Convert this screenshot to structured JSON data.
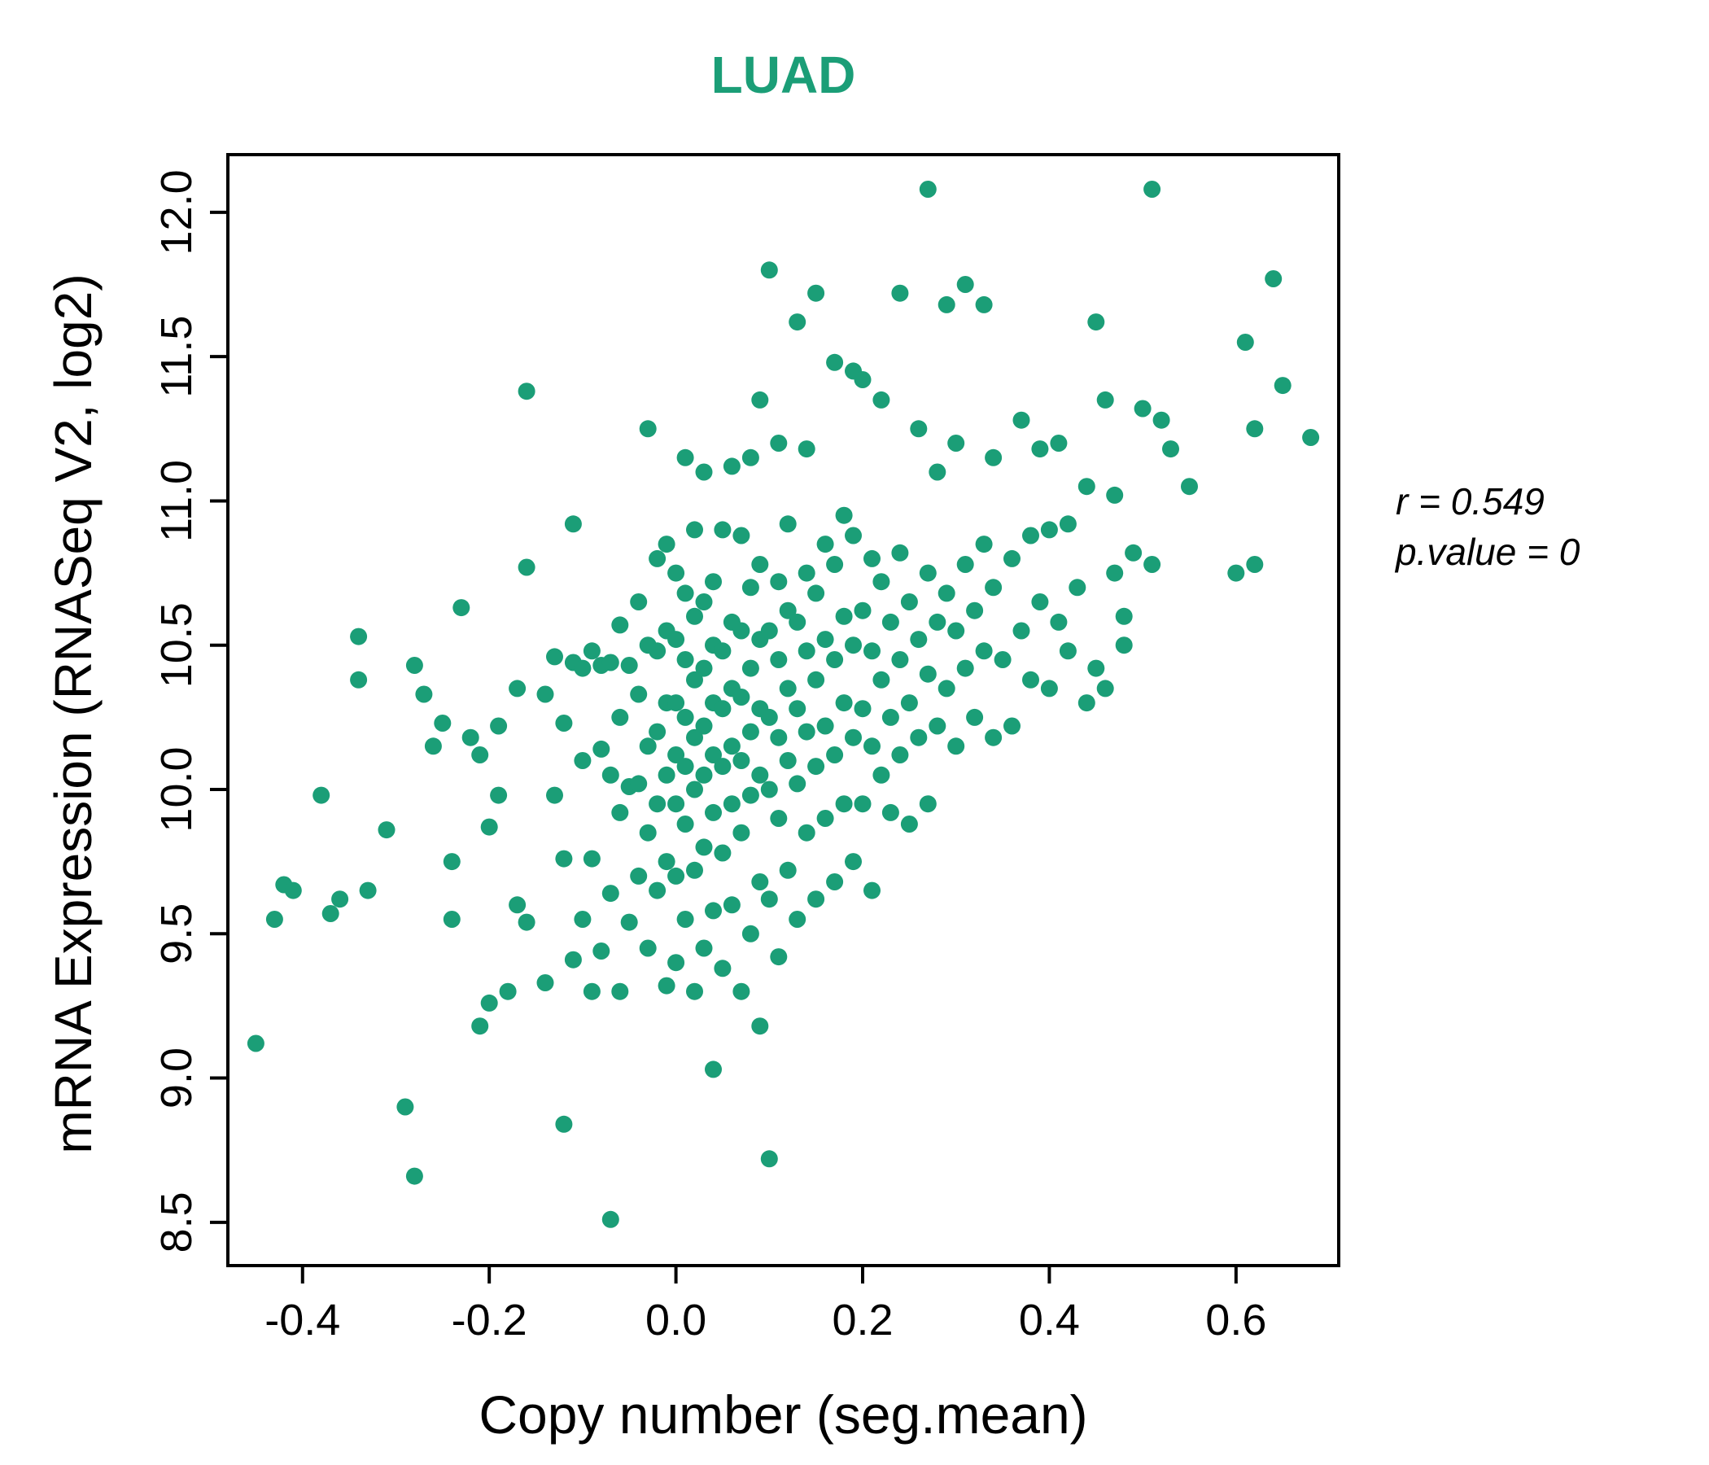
{
  "title": "LUAD",
  "annotation": {
    "r_line": "r = 0.549",
    "p_line": "p.value = 0"
  },
  "chart_data": {
    "type": "scatter",
    "title": "LUAD",
    "xlabel": "Copy number (seg.mean)",
    "ylabel": "mRNA Expression (RNASeq V2, log2)",
    "xlim": [
      -0.48,
      0.71
    ],
    "ylim": [
      8.35,
      12.2
    ],
    "x_tick_values": [
      -0.4,
      -0.2,
      0.0,
      0.2,
      0.4,
      0.6
    ],
    "x_tick_labels": [
      "-0.4",
      "-0.2",
      "0.0",
      "0.2",
      "0.4",
      "0.6"
    ],
    "y_tick_values": [
      8.5,
      9.0,
      9.5,
      10.0,
      10.5,
      11.0,
      11.5,
      12.0
    ],
    "y_tick_labels": [
      "8.5",
      "9.0",
      "9.5",
      "10.0",
      "10.5",
      "11.0",
      "11.5",
      "12.0"
    ],
    "point_color": "#1b9e77",
    "title_color": "#1b9e77",
    "legend": "none",
    "grid": false,
    "stats": {
      "r": 0.549,
      "p_value": 0
    },
    "points": [
      [
        -0.45,
        9.12
      ],
      [
        -0.43,
        9.55
      ],
      [
        -0.42,
        9.67
      ],
      [
        -0.41,
        9.65
      ],
      [
        -0.38,
        9.98
      ],
      [
        -0.37,
        9.57
      ],
      [
        -0.36,
        9.62
      ],
      [
        -0.34,
        10.53
      ],
      [
        -0.34,
        10.38
      ],
      [
        -0.33,
        9.65
      ],
      [
        -0.31,
        9.86
      ],
      [
        -0.29,
        8.9
      ],
      [
        -0.28,
        8.66
      ],
      [
        -0.28,
        10.43
      ],
      [
        -0.27,
        10.33
      ],
      [
        -0.26,
        10.15
      ],
      [
        -0.25,
        10.23
      ],
      [
        -0.24,
        9.75
      ],
      [
        -0.24,
        9.55
      ],
      [
        -0.23,
        10.63
      ],
      [
        -0.22,
        10.18
      ],
      [
        -0.21,
        9.18
      ],
      [
        -0.21,
        10.12
      ],
      [
        -0.2,
        9.26
      ],
      [
        -0.2,
        9.87
      ],
      [
        -0.19,
        9.98
      ],
      [
        -0.19,
        10.22
      ],
      [
        -0.18,
        9.3
      ],
      [
        -0.17,
        9.6
      ],
      [
        -0.17,
        10.35
      ],
      [
        -0.16,
        11.38
      ],
      [
        -0.16,
        9.54
      ],
      [
        -0.16,
        10.77
      ],
      [
        -0.14,
        9.33
      ],
      [
        -0.14,
        10.33
      ],
      [
        -0.13,
        9.98
      ],
      [
        -0.13,
        10.46
      ],
      [
        -0.12,
        9.76
      ],
      [
        -0.12,
        10.23
      ],
      [
        -0.12,
        8.84
      ],
      [
        -0.11,
        9.41
      ],
      [
        -0.11,
        10.44
      ],
      [
        -0.11,
        10.92
      ],
      [
        -0.1,
        9.55
      ],
      [
        -0.1,
        10.1
      ],
      [
        -0.1,
        10.42
      ],
      [
        -0.09,
        9.3
      ],
      [
        -0.09,
        9.76
      ],
      [
        -0.09,
        10.48
      ],
      [
        -0.08,
        9.44
      ],
      [
        -0.08,
        10.43
      ],
      [
        -0.08,
        10.14
      ],
      [
        -0.07,
        8.51
      ],
      [
        -0.07,
        9.64
      ],
      [
        -0.07,
        10.05
      ],
      [
        -0.07,
        10.44
      ],
      [
        -0.06,
        9.3
      ],
      [
        -0.06,
        9.92
      ],
      [
        -0.06,
        10.25
      ],
      [
        -0.06,
        10.57
      ],
      [
        -0.05,
        9.54
      ],
      [
        -0.05,
        10.01
      ],
      [
        -0.05,
        10.43
      ],
      [
        -0.04,
        9.7
      ],
      [
        -0.04,
        10.02
      ],
      [
        -0.04,
        10.33
      ],
      [
        -0.04,
        10.65
      ],
      [
        -0.03,
        9.45
      ],
      [
        -0.03,
        9.85
      ],
      [
        -0.03,
        10.15
      ],
      [
        -0.03,
        10.5
      ],
      [
        -0.03,
        11.25
      ],
      [
        -0.02,
        9.65
      ],
      [
        -0.02,
        9.95
      ],
      [
        -0.02,
        10.2
      ],
      [
        -0.02,
        10.48
      ],
      [
        -0.02,
        10.8
      ],
      [
        -0.01,
        9.32
      ],
      [
        -0.01,
        9.75
      ],
      [
        -0.01,
        10.05
      ],
      [
        -0.01,
        10.3
      ],
      [
        -0.01,
        10.55
      ],
      [
        -0.01,
        10.85
      ],
      [
        0.0,
        9.4
      ],
      [
        0.0,
        9.7
      ],
      [
        0.0,
        9.95
      ],
      [
        0.0,
        10.12
      ],
      [
        0.0,
        10.3
      ],
      [
        0.0,
        10.52
      ],
      [
        0.0,
        10.75
      ],
      [
        0.01,
        9.55
      ],
      [
        0.01,
        9.88
      ],
      [
        0.01,
        10.08
      ],
      [
        0.01,
        10.25
      ],
      [
        0.01,
        10.45
      ],
      [
        0.01,
        10.68
      ],
      [
        0.01,
        11.15
      ],
      [
        0.02,
        9.3
      ],
      [
        0.02,
        9.72
      ],
      [
        0.02,
        10.0
      ],
      [
        0.02,
        10.18
      ],
      [
        0.02,
        10.38
      ],
      [
        0.02,
        10.6
      ],
      [
        0.02,
        10.9
      ],
      [
        0.03,
        9.45
      ],
      [
        0.03,
        9.8
      ],
      [
        0.03,
        10.05
      ],
      [
        0.03,
        10.22
      ],
      [
        0.03,
        10.42
      ],
      [
        0.03,
        10.65
      ],
      [
        0.03,
        11.1
      ],
      [
        0.04,
        9.58
      ],
      [
        0.04,
        9.92
      ],
      [
        0.04,
        10.12
      ],
      [
        0.04,
        10.3
      ],
      [
        0.04,
        10.5
      ],
      [
        0.04,
        10.72
      ],
      [
        0.04,
        9.03
      ],
      [
        0.05,
        9.38
      ],
      [
        0.05,
        9.78
      ],
      [
        0.05,
        10.08
      ],
      [
        0.05,
        10.28
      ],
      [
        0.05,
        10.48
      ],
      [
        0.05,
        10.9
      ],
      [
        0.06,
        9.6
      ],
      [
        0.06,
        9.95
      ],
      [
        0.06,
        10.15
      ],
      [
        0.06,
        10.35
      ],
      [
        0.06,
        10.58
      ],
      [
        0.06,
        11.12
      ],
      [
        0.07,
        9.3
      ],
      [
        0.07,
        9.85
      ],
      [
        0.07,
        10.1
      ],
      [
        0.07,
        10.32
      ],
      [
        0.07,
        10.55
      ],
      [
        0.07,
        10.88
      ],
      [
        0.08,
        9.5
      ],
      [
        0.08,
        9.98
      ],
      [
        0.08,
        10.2
      ],
      [
        0.08,
        10.42
      ],
      [
        0.08,
        10.7
      ],
      [
        0.08,
        11.15
      ],
      [
        0.09,
        9.18
      ],
      [
        0.09,
        9.68
      ],
      [
        0.09,
        10.05
      ],
      [
        0.09,
        10.28
      ],
      [
        0.09,
        10.52
      ],
      [
        0.09,
        10.78
      ],
      [
        0.09,
        11.35
      ],
      [
        0.1,
        8.72
      ],
      [
        0.1,
        9.62
      ],
      [
        0.1,
        10.0
      ],
      [
        0.1,
        10.25
      ],
      [
        0.1,
        10.55
      ],
      [
        0.1,
        11.8
      ],
      [
        0.11,
        9.42
      ],
      [
        0.11,
        9.9
      ],
      [
        0.11,
        10.18
      ],
      [
        0.11,
        10.45
      ],
      [
        0.11,
        10.72
      ],
      [
        0.11,
        11.2
      ],
      [
        0.12,
        9.72
      ],
      [
        0.12,
        10.1
      ],
      [
        0.12,
        10.35
      ],
      [
        0.12,
        10.62
      ],
      [
        0.12,
        10.92
      ],
      [
        0.13,
        9.55
      ],
      [
        0.13,
        10.02
      ],
      [
        0.13,
        10.28
      ],
      [
        0.13,
        10.58
      ],
      [
        0.13,
        11.62
      ],
      [
        0.14,
        9.85
      ],
      [
        0.14,
        10.2
      ],
      [
        0.14,
        10.48
      ],
      [
        0.14,
        10.75
      ],
      [
        0.14,
        11.18
      ],
      [
        0.15,
        9.62
      ],
      [
        0.15,
        10.08
      ],
      [
        0.15,
        10.38
      ],
      [
        0.15,
        10.68
      ],
      [
        0.15,
        11.72
      ],
      [
        0.16,
        9.9
      ],
      [
        0.16,
        10.22
      ],
      [
        0.16,
        10.52
      ],
      [
        0.16,
        10.85
      ],
      [
        0.17,
        9.68
      ],
      [
        0.17,
        10.12
      ],
      [
        0.17,
        10.45
      ],
      [
        0.17,
        10.78
      ],
      [
        0.17,
        11.48
      ],
      [
        0.18,
        9.95
      ],
      [
        0.18,
        10.3
      ],
      [
        0.18,
        10.6
      ],
      [
        0.18,
        10.95
      ],
      [
        0.19,
        9.75
      ],
      [
        0.19,
        10.18
      ],
      [
        0.19,
        10.5
      ],
      [
        0.19,
        10.88
      ],
      [
        0.19,
        11.45
      ],
      [
        0.2,
        9.95
      ],
      [
        0.2,
        10.28
      ],
      [
        0.2,
        10.62
      ],
      [
        0.2,
        11.42
      ],
      [
        0.21,
        9.65
      ],
      [
        0.21,
        10.15
      ],
      [
        0.21,
        10.48
      ],
      [
        0.21,
        10.8
      ],
      [
        0.22,
        10.05
      ],
      [
        0.22,
        10.38
      ],
      [
        0.22,
        10.72
      ],
      [
        0.22,
        11.35
      ],
      [
        0.23,
        9.92
      ],
      [
        0.23,
        10.25
      ],
      [
        0.23,
        10.58
      ],
      [
        0.24,
        10.12
      ],
      [
        0.24,
        10.45
      ],
      [
        0.24,
        10.82
      ],
      [
        0.24,
        11.72
      ],
      [
        0.25,
        9.88
      ],
      [
        0.25,
        10.3
      ],
      [
        0.25,
        10.65
      ],
      [
        0.26,
        10.18
      ],
      [
        0.26,
        10.52
      ],
      [
        0.26,
        11.25
      ],
      [
        0.27,
        9.95
      ],
      [
        0.27,
        10.4
      ],
      [
        0.27,
        10.75
      ],
      [
        0.27,
        12.08
      ],
      [
        0.28,
        10.22
      ],
      [
        0.28,
        10.58
      ],
      [
        0.28,
        11.1
      ],
      [
        0.29,
        10.35
      ],
      [
        0.29,
        10.68
      ],
      [
        0.29,
        11.68
      ],
      [
        0.3,
        10.15
      ],
      [
        0.3,
        10.55
      ],
      [
        0.3,
        11.2
      ],
      [
        0.31,
        10.42
      ],
      [
        0.31,
        10.78
      ],
      [
        0.31,
        11.75
      ],
      [
        0.32,
        10.25
      ],
      [
        0.32,
        10.62
      ],
      [
        0.33,
        10.48
      ],
      [
        0.33,
        10.85
      ],
      [
        0.33,
        11.68
      ],
      [
        0.34,
        10.18
      ],
      [
        0.34,
        10.7
      ],
      [
        0.34,
        11.15
      ],
      [
        0.35,
        10.45
      ],
      [
        0.36,
        10.22
      ],
      [
        0.36,
        10.8
      ],
      [
        0.37,
        10.55
      ],
      [
        0.37,
        11.28
      ],
      [
        0.38,
        10.38
      ],
      [
        0.38,
        10.88
      ],
      [
        0.39,
        10.65
      ],
      [
        0.39,
        11.18
      ],
      [
        0.4,
        10.35
      ],
      [
        0.4,
        10.9
      ],
      [
        0.41,
        10.58
      ],
      [
        0.41,
        11.2
      ],
      [
        0.42,
        10.48
      ],
      [
        0.42,
        10.92
      ],
      [
        0.43,
        10.7
      ],
      [
        0.44,
        11.05
      ],
      [
        0.44,
        10.3
      ],
      [
        0.45,
        10.42
      ],
      [
        0.45,
        11.62
      ],
      [
        0.46,
        10.35
      ],
      [
        0.46,
        11.35
      ],
      [
        0.47,
        10.75
      ],
      [
        0.47,
        11.02
      ],
      [
        0.48,
        10.6
      ],
      [
        0.48,
        10.5
      ],
      [
        0.49,
        10.82
      ],
      [
        0.5,
        11.32
      ],
      [
        0.51,
        12.08
      ],
      [
        0.51,
        10.78
      ],
      [
        0.52,
        11.28
      ],
      [
        0.53,
        11.18
      ],
      [
        0.55,
        11.05
      ],
      [
        0.6,
        10.75
      ],
      [
        0.61,
        11.55
      ],
      [
        0.62,
        10.78
      ],
      [
        0.62,
        11.25
      ],
      [
        0.64,
        11.77
      ],
      [
        0.65,
        11.4
      ],
      [
        0.68,
        11.22
      ]
    ]
  }
}
